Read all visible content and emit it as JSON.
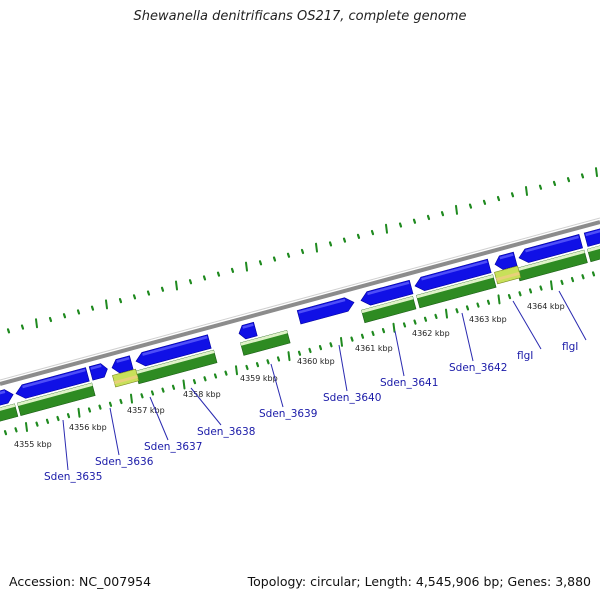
{
  "title": "Shewanella denitrificans OS217, complete genome",
  "footer": {
    "accession": "Accession: NC_007954",
    "summary": "Topology: circular; Length: 4,545,906 bp; Genes: 3,880"
  },
  "colors": {
    "backbone": "#8c8c8c",
    "forward_gene": "#1010e6",
    "reverse_cds": "#2e8b22",
    "highlight": "#c8e05a",
    "tick": "#1f8a1f",
    "gene_label": "#1a1aa8"
  },
  "kbp_markers": [
    "4355 kbp",
    "4356 kbp",
    "4357 kbp",
    "4358 kbp",
    "4359 kbp",
    "4360 kbp",
    "4361 kbp",
    "4362 kbp",
    "4363 kbp",
    "4364 kbp"
  ],
  "gene_labels": [
    "Sden_3635",
    "Sden_3636",
    "Sden_3637",
    "Sden_3638",
    "Sden_3639",
    "Sden_3640",
    "Sden_3641",
    "Sden_3642",
    "flgI",
    "flgI"
  ]
}
